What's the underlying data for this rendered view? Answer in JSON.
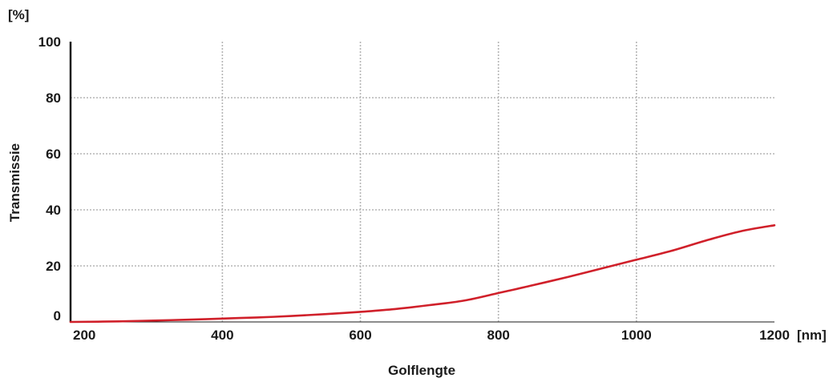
{
  "chart_data": {
    "type": "line",
    "xlabel": "Golflengte",
    "ylabel": "Transmissie",
    "x_unit": "[nm]",
    "y_unit": "[%]",
    "xlim": [
      180,
      1200
    ],
    "ylim": [
      0,
      100
    ],
    "x_ticks": [
      200,
      400,
      600,
      800,
      1000,
      1200
    ],
    "y_ticks": [
      0,
      20,
      40,
      60,
      80,
      100
    ],
    "x_gridlines": [
      400,
      600,
      800,
      1000
    ],
    "y_gridlines": [
      20,
      40,
      60,
      80
    ],
    "grid": true,
    "series": [
      {
        "color": "#d0202a",
        "x": [
          180,
          250,
          300,
          350,
          400,
          450,
          500,
          550,
          600,
          650,
          700,
          750,
          800,
          850,
          900,
          950,
          1000,
          1050,
          1100,
          1150,
          1200
        ],
        "y": [
          0.0,
          0.2,
          0.5,
          0.8,
          1.2,
          1.6,
          2.1,
          2.8,
          3.6,
          4.6,
          6.0,
          7.6,
          10.3,
          13.1,
          16.0,
          19.1,
          22.2,
          25.3,
          29.0,
          32.3,
          34.5
        ]
      }
    ]
  }
}
